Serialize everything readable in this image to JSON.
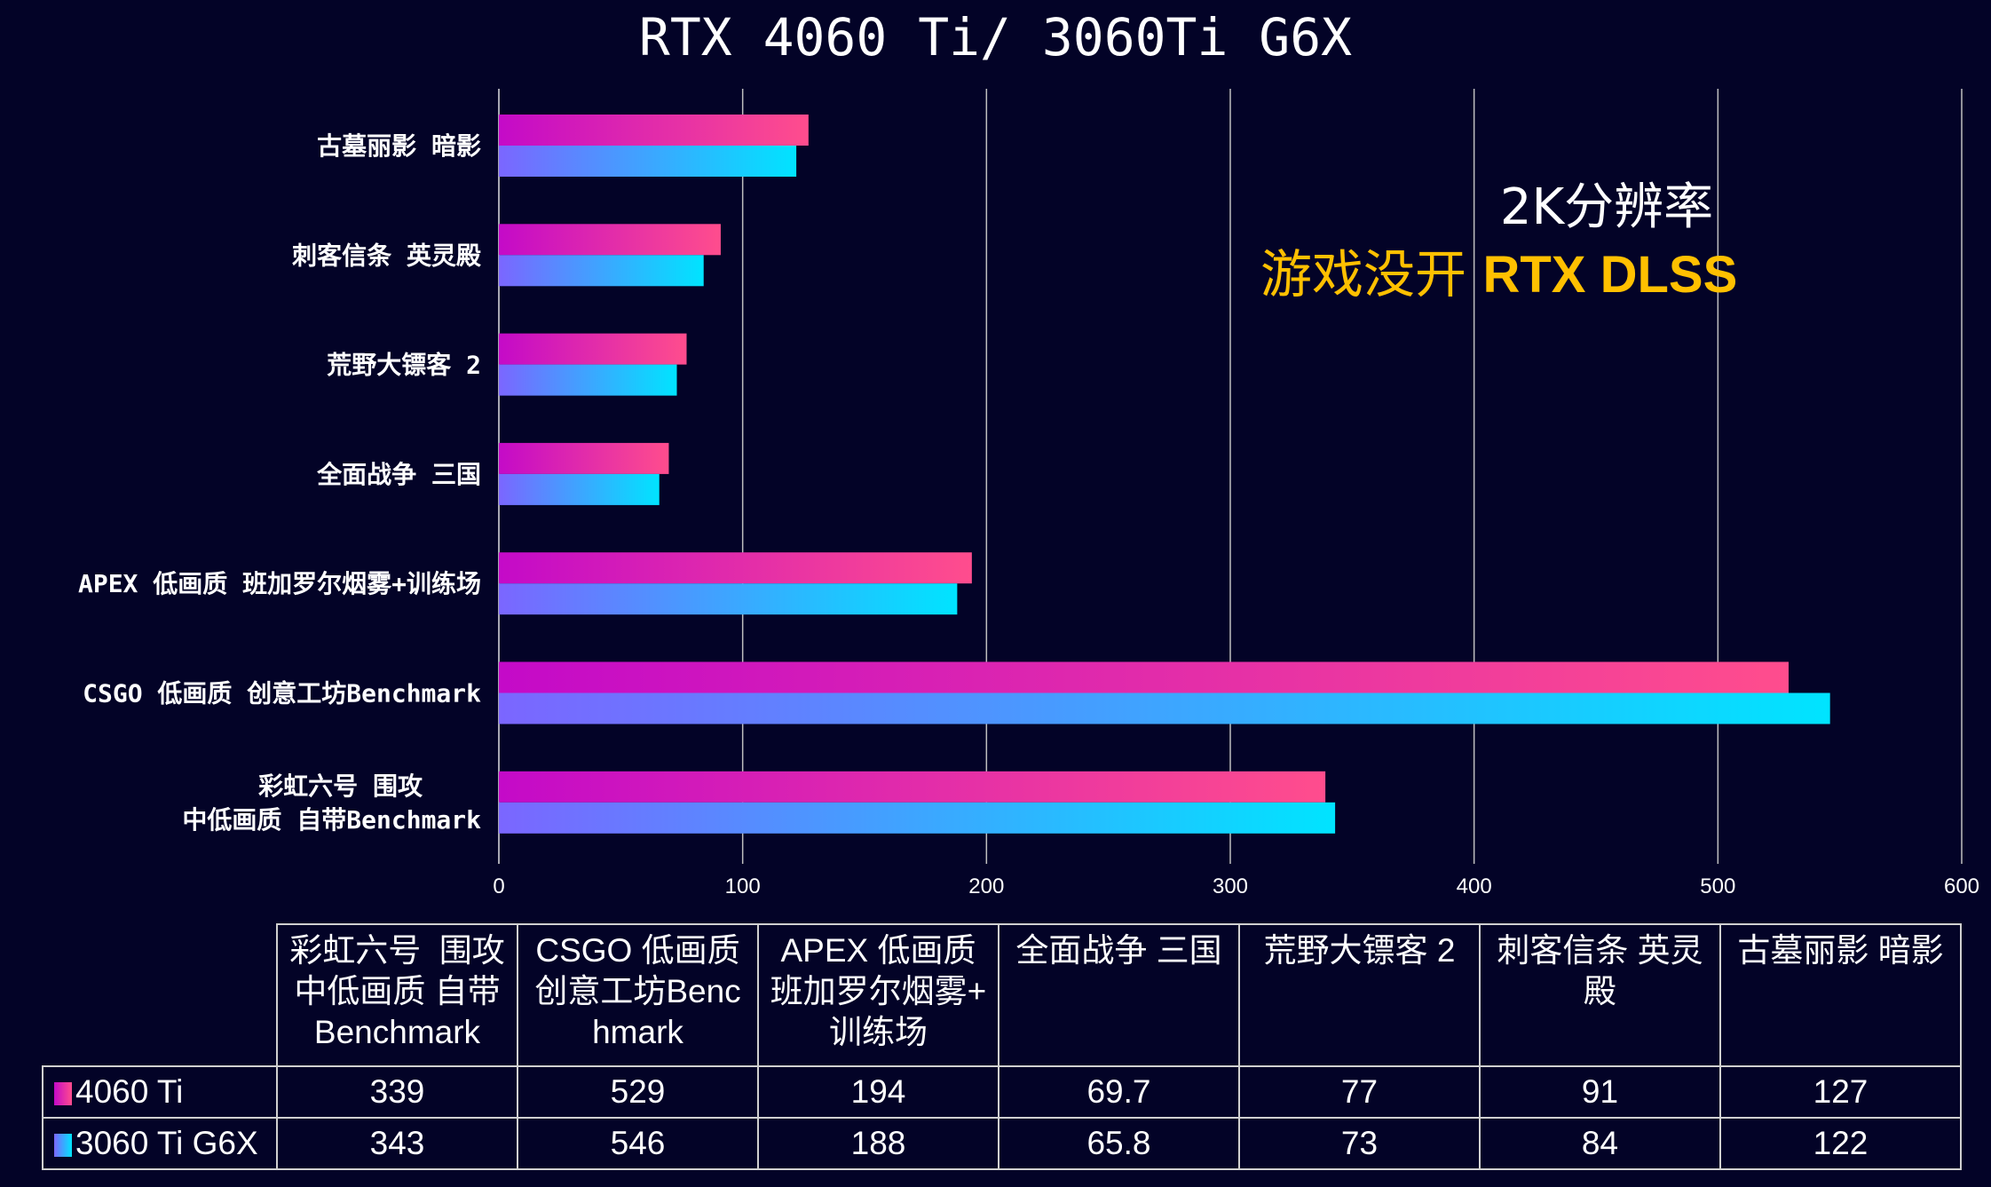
{
  "chart_data": {
    "type": "bar",
    "orientation": "horizontal",
    "title": "RTX 4060 Ti/ 3060Ti G6X",
    "annotation_line1": "2K分辨率",
    "annotation_line2_cn": "游戏没开",
    "annotation_line2_en": "RTX DLSS",
    "categories": [
      "彩虹六号  围攻 中低画质 自带Benchmark",
      "CSGO 低画质 创意工坊Benchmark",
      "APEX 低画质 班加罗尔烟雾+训练场",
      "全面战争 三国",
      "荒野大镖客 2",
      "刺客信条 英灵殿",
      "古墓丽影 暗影"
    ],
    "axis_category_labels": [
      [
        "彩虹六号  围攻",
        "中低画质 自带Benchmark"
      ],
      [
        "CSGO 低画质 创意工坊Benchmark"
      ],
      [
        "APEX 低画质 班加罗尔烟雾+训练场"
      ],
      [
        "全面战争 三国"
      ],
      [
        "荒野大镖客 2"
      ],
      [
        "刺客信条 英灵殿"
      ],
      [
        "古墓丽影 暗影"
      ]
    ],
    "table_headers": [
      "彩虹六号  围攻\n中低画质 自带\nBenchmark",
      "CSGO 低画质\n创意工坊Benc\nhmark",
      "APEX 低画质\n班加罗尔烟雾+\n训练场",
      "全面战争 三国",
      "荒野大镖客 2",
      "刺客信条 英灵\n殿",
      "古墓丽影 暗影"
    ],
    "series": [
      {
        "name": "4060 Ti",
        "values": [
          339,
          529,
          194,
          69.7,
          77,
          91,
          127
        ],
        "display": [
          "339",
          "529",
          "194",
          "69.7",
          "77",
          "91",
          "127"
        ],
        "color_start": "#c40ac8",
        "color_end": "#ff4d8d"
      },
      {
        "name": "3060 Ti G6X",
        "values": [
          343,
          546,
          188,
          65.8,
          73,
          84,
          122
        ],
        "display": [
          "343",
          "546",
          "188",
          "65.8",
          "73",
          "84",
          "122"
        ],
        "color_start": "#7b66ff",
        "color_end": "#00e4ff"
      }
    ],
    "xlim": [
      0,
      600
    ],
    "xticks": [
      "0",
      "100",
      "200",
      "300",
      "400",
      "500",
      "600"
    ],
    "grid": true,
    "legend": "data-table-bottom"
  }
}
